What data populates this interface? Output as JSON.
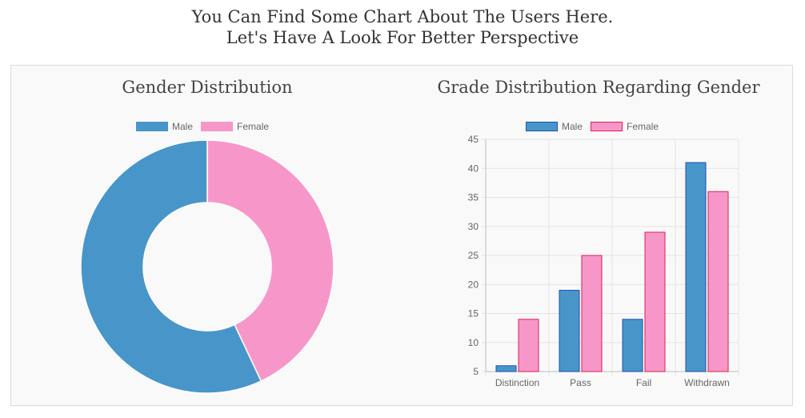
{
  "header": {
    "line1": "You Can Find Some Chart About The Users Here.",
    "line2": "Let's Have A Look For Better Perspective"
  },
  "colors": {
    "male": "#4896c9",
    "female": "#f797c9",
    "male_border": "#2050b0",
    "female_border": "#e0204a"
  },
  "chart_data": [
    {
      "type": "pie",
      "title": "Gender Distribution",
      "donut": true,
      "legend_position": "top",
      "categories": [
        "Male",
        "Female"
      ],
      "values": [
        57,
        43
      ]
    },
    {
      "type": "bar",
      "title": "Grade Distribution Regarding Gender",
      "legend_position": "top",
      "grid": true,
      "categories": [
        "Distinction",
        "Pass",
        "Fail",
        "Withdrawn"
      ],
      "ylim": [
        5,
        45
      ],
      "yticks": [
        5,
        10,
        15,
        20,
        25,
        30,
        35,
        40,
        45
      ],
      "series": [
        {
          "name": "Male",
          "values": [
            6,
            19,
            14,
            41
          ]
        },
        {
          "name": "Female",
          "values": [
            14,
            25,
            29,
            36
          ]
        }
      ]
    }
  ]
}
